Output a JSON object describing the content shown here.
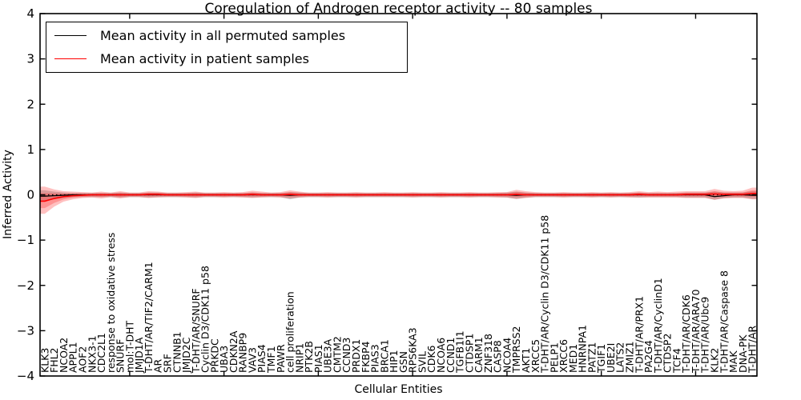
{
  "figure": {
    "title": "Coregulation of Androgen receptor activity -- 80 samples",
    "xlabel": "Cellular Entities",
    "ylabel": "Inferred Activity"
  },
  "legend": {
    "entries": [
      {
        "label": "Mean activity in all permuted samples",
        "color": "#000000"
      },
      {
        "label": "Mean activity in patient samples",
        "color": "#ff0000"
      }
    ]
  },
  "chart_data": {
    "type": "line",
    "title": "Coregulation of Androgen receptor activity -- 80 samples",
    "xlabel": "Cellular Entities",
    "ylabel": "Inferred Activity",
    "ylim": [
      -4,
      4
    ],
    "yticks": [
      -4,
      -3,
      -2,
      -1,
      0,
      1,
      2,
      3,
      4
    ],
    "xtick_every": 10,
    "grid": false,
    "legend_position": "upper left",
    "zero_line": {
      "style": "dotted",
      "color": "#000000",
      "y": 0
    },
    "categories": [
      "KLK3",
      "FHL2",
      "NCOA2",
      "APPL1",
      "AOF2",
      "NKX3-1",
      "CDC2L1",
      "response to oxidative stress",
      "SNURF",
      "mol:T-DHT",
      "JMJD1A",
      "T-DHT/AR/TIF2/CARM1",
      "AR",
      "SRF",
      "CTNNB1",
      "JMJD2C",
      "T-DHT/AR/SNURF",
      "Cyclin D3/CDK11 p58",
      "PRKDC",
      "UBA3",
      "CDKN2A",
      "RANBP9",
      "VAV3",
      "PIAS4",
      "TMF1",
      "PAWR",
      "cell proliferation",
      "NRIP1",
      "PTK2B",
      "PIAS1",
      "UBE3A",
      "CMTM2",
      "CCND3",
      "PRDX1",
      "FKBP4",
      "PIAS3",
      "BRCA1",
      "HIP1",
      "GSN",
      "RPS6KA3",
      "SVIL",
      "CDK6",
      "NCOA6",
      "CCND1",
      "TGFB1I1",
      "CTDSP1",
      "CARM1",
      "ZNF318",
      "CASP8",
      "NCOA4",
      "TMPRSS2",
      "AKT1",
      "XRCC5",
      "T-DHT/AR/Cyclin D3/CDK11 p58",
      "PELP1",
      "XRCC6",
      "MED1",
      "HNRNPA1",
      "PATZ1",
      "TGIF1",
      "UBE2I",
      "LATS2",
      "ZMIZ1",
      "T-DHT/AR/PRX1",
      "PA2G4",
      "T-DHT/AR/CyclinD1",
      "CTDSP2",
      "TCF4",
      "T-DHT/AR/CDK6",
      "T-DHT/AR/ARA70",
      "T-DHT/AR/Ubc9",
      "KLK2",
      "T-DHT/AR/Caspase 8",
      "MAK",
      "DNA-PK",
      "T-DHT/AR"
    ],
    "series": [
      {
        "name": "Mean activity in all permuted samples",
        "color": "#000000",
        "band_color": "rgba(110,110,110,0.35)",
        "values": [
          -0.03,
          -0.02,
          -0.01,
          0,
          0,
          0,
          0,
          0,
          0,
          0,
          0,
          0,
          0,
          0,
          0,
          0,
          0,
          0,
          0,
          0,
          0,
          0,
          0,
          0,
          0,
          0,
          -0.01,
          0,
          0,
          0,
          0,
          0,
          0,
          0,
          0,
          0,
          0,
          0,
          0,
          0,
          0,
          0,
          0,
          0,
          0,
          0,
          0,
          0,
          0,
          0,
          -0.01,
          0,
          0,
          0,
          0,
          0,
          0,
          0,
          0,
          0,
          0,
          0,
          0,
          0,
          0,
          0,
          0,
          0,
          0,
          0,
          0,
          -0.04,
          -0.02,
          0,
          0,
          -0.01
        ],
        "band_upper": [
          0.1,
          0.07,
          0.05,
          0.04,
          0.04,
          0.04,
          0.04,
          0.04,
          0.05,
          0.04,
          0.04,
          0.05,
          0.05,
          0.04,
          0.04,
          0.04,
          0.05,
          0.04,
          0.04,
          0.04,
          0.04,
          0.04,
          0.05,
          0.04,
          0.04,
          0.04,
          0.06,
          0.05,
          0.04,
          0.04,
          0.04,
          0.04,
          0.04,
          0.04,
          0.04,
          0.04,
          0.04,
          0.04,
          0.04,
          0.04,
          0.04,
          0.04,
          0.04,
          0.04,
          0.04,
          0.04,
          0.04,
          0.04,
          0.04,
          0.05,
          0.07,
          0.05,
          0.04,
          0.04,
          0.04,
          0.04,
          0.04,
          0.04,
          0.04,
          0.04,
          0.04,
          0.04,
          0.04,
          0.05,
          0.04,
          0.04,
          0.04,
          0.04,
          0.05,
          0.05,
          0.05,
          0.07,
          0.05,
          0.05,
          0.05,
          0.08
        ],
        "band_lower": [
          -0.14,
          -0.1,
          -0.07,
          -0.05,
          -0.05,
          -0.05,
          -0.05,
          -0.05,
          -0.06,
          -0.05,
          -0.05,
          -0.06,
          -0.05,
          -0.05,
          -0.05,
          -0.05,
          -0.06,
          -0.05,
          -0.05,
          -0.05,
          -0.05,
          -0.05,
          -0.06,
          -0.05,
          -0.05,
          -0.05,
          -0.1,
          -0.06,
          -0.05,
          -0.05,
          -0.05,
          -0.05,
          -0.05,
          -0.05,
          -0.05,
          -0.05,
          -0.05,
          -0.05,
          -0.05,
          -0.05,
          -0.05,
          -0.05,
          -0.05,
          -0.05,
          -0.05,
          -0.05,
          -0.05,
          -0.05,
          -0.05,
          -0.06,
          -0.09,
          -0.06,
          -0.05,
          -0.05,
          -0.05,
          -0.05,
          -0.05,
          -0.05,
          -0.05,
          -0.05,
          -0.05,
          -0.05,
          -0.05,
          -0.06,
          -0.05,
          -0.05,
          -0.05,
          -0.05,
          -0.06,
          -0.06,
          -0.06,
          -0.11,
          -0.07,
          -0.06,
          -0.06,
          -0.09
        ]
      },
      {
        "name": "Mean activity in patient samples",
        "color": "#ff0000",
        "band_color": "rgba(255,30,30,0.28)",
        "values": [
          -0.14,
          -0.08,
          -0.04,
          -0.02,
          -0.01,
          0,
          0,
          0,
          0,
          0,
          0,
          0.01,
          0.01,
          0,
          0,
          0,
          0,
          0,
          0,
          0,
          0,
          0,
          0.01,
          0,
          0,
          0,
          0.01,
          0,
          0,
          0,
          0,
          0,
          0,
          0,
          0,
          0,
          0,
          0,
          0,
          0,
          0,
          0,
          0,
          0,
          0,
          0,
          0,
          0,
          0,
          0,
          0.01,
          0,
          0,
          0,
          0,
          0,
          0,
          0,
          0,
          0,
          0,
          0,
          0,
          0.01,
          0,
          0,
          0,
          0,
          0.01,
          0.01,
          0.01,
          0.02,
          0.01,
          0.01,
          0.01,
          0.03
        ],
        "band_upper": [
          0.18,
          0.12,
          0.08,
          0.07,
          0.06,
          0.05,
          0.07,
          0.05,
          0.08,
          0.05,
          0.05,
          0.08,
          0.07,
          0.05,
          0.05,
          0.06,
          0.07,
          0.05,
          0.05,
          0.06,
          0.05,
          0.06,
          0.09,
          0.07,
          0.05,
          0.06,
          0.1,
          0.07,
          0.05,
          0.05,
          0.06,
          0.05,
          0.05,
          0.06,
          0.05,
          0.05,
          0.06,
          0.05,
          0.05,
          0.06,
          0.05,
          0.05,
          0.06,
          0.05,
          0.05,
          0.06,
          0.05,
          0.05,
          0.06,
          0.06,
          0.11,
          0.08,
          0.06,
          0.05,
          0.05,
          0.06,
          0.05,
          0.05,
          0.06,
          0.05,
          0.06,
          0.05,
          0.06,
          0.08,
          0.06,
          0.07,
          0.06,
          0.07,
          0.08,
          0.08,
          0.08,
          0.13,
          0.09,
          0.08,
          0.09,
          0.16
        ],
        "band_lower": [
          -0.42,
          -0.26,
          -0.15,
          -0.1,
          -0.07,
          -0.06,
          -0.08,
          -0.05,
          -0.08,
          -0.05,
          -0.05,
          -0.07,
          -0.06,
          -0.05,
          -0.05,
          -0.06,
          -0.07,
          -0.05,
          -0.05,
          -0.06,
          -0.05,
          -0.06,
          -0.07,
          -0.06,
          -0.05,
          -0.06,
          -0.08,
          -0.06,
          -0.05,
          -0.05,
          -0.06,
          -0.05,
          -0.05,
          -0.06,
          -0.05,
          -0.05,
          -0.05,
          -0.05,
          -0.05,
          -0.06,
          -0.05,
          -0.05,
          -0.06,
          -0.05,
          -0.05,
          -0.06,
          -0.05,
          -0.05,
          -0.06,
          -0.06,
          -0.09,
          -0.07,
          -0.05,
          -0.05,
          -0.05,
          -0.06,
          -0.05,
          -0.05,
          -0.06,
          -0.05,
          -0.06,
          -0.05,
          -0.06,
          -0.06,
          -0.06,
          -0.06,
          -0.06,
          -0.06,
          -0.07,
          -0.07,
          -0.07,
          -0.11,
          -0.08,
          -0.07,
          -0.07,
          -0.1
        ]
      }
    ],
    "style": {
      "inner_band_scale": 0.55
    }
  }
}
